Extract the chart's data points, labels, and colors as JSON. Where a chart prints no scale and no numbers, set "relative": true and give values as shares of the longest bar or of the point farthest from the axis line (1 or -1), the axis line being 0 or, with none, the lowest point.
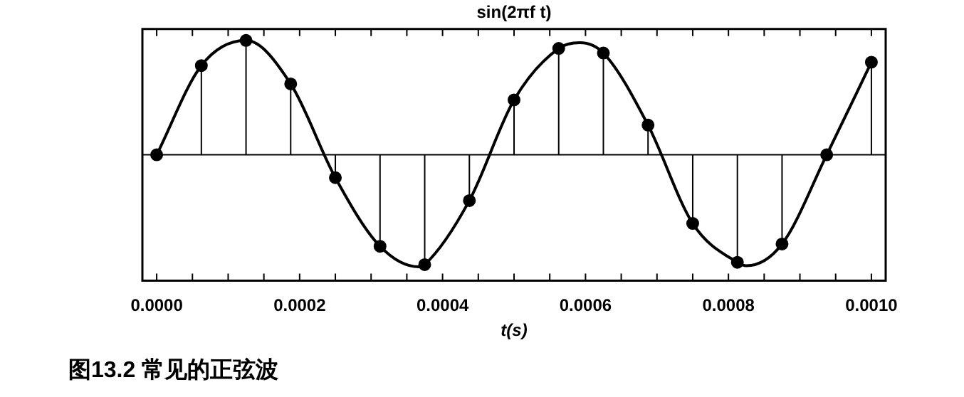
{
  "chart_data": {
    "type": "lollipop",
    "title": "sin(2πf t)",
    "xlabel": "t(s)",
    "annotations": [
      "图13.2 常见的正弦波"
    ],
    "relative": true,
    "tick_labels": "x",
    "xlim": [
      -2e-05,
      0.00102
    ],
    "xticks": [
      {
        "value": 0,
        "label": "0.0000"
      },
      {
        "value": 5e-05,
        "label": null
      },
      {
        "value": 0.0001,
        "label": null
      },
      {
        "value": 0.00015,
        "label": null
      },
      {
        "value": 0.0002,
        "label": "0.0002"
      },
      {
        "value": 0.00025,
        "label": null
      },
      {
        "value": 0.0003,
        "label": null
      },
      {
        "value": 0.00035,
        "label": null
      },
      {
        "value": 0.0004,
        "label": "0.0004"
      },
      {
        "value": 0.00045,
        "label": null
      },
      {
        "value": 0.0005,
        "label": null
      },
      {
        "value": 0.00055,
        "label": null
      },
      {
        "value": 0.0006,
        "label": "0.0006"
      },
      {
        "value": 0.00065,
        "label": null
      },
      {
        "value": 0.0007,
        "label": null
      },
      {
        "value": 0.00075,
        "label": null
      },
      {
        "value": 0.0008,
        "label": "0.0008"
      },
      {
        "value": 0.00085,
        "label": null
      },
      {
        "value": 0.0009,
        "label": null
      },
      {
        "value": 0.00095,
        "label": null
      },
      {
        "value": 0.001,
        "label": "0.0010"
      }
    ],
    "series": [
      {
        "marker": "circle",
        "color": "#000000",
        "x": [
          0,
          6.25e-05,
          0.000125,
          0.0001875,
          0.00025,
          0.0003125,
          0.000375,
          0.0004375,
          0.0005,
          0.0005625,
          0.000625,
          0.0006875,
          0.00075,
          0.0008125,
          0.000875,
          0.0009375,
          0.001
        ],
        "values": [
          0,
          0.78,
          1,
          0.62,
          -0.2,
          -0.8,
          -0.96,
          -0.4,
          0.48,
          0.93,
          0.89,
          0.26,
          -0.6,
          -0.94,
          -0.78,
          0,
          0.81
        ]
      },
      {
        "type": "line",
        "marker": "none",
        "color": "#000000",
        "x": [
          0,
          6.25e-05,
          0.000125,
          0.0001875,
          0.00025,
          0.0003125,
          0.000367,
          0.000375,
          0.0004375,
          0.0005,
          0.0005625,
          0.000592,
          0.000625,
          0.0006875,
          0.00075,
          0.0008125,
          0.000825,
          0.000875,
          0.0009375,
          0.001
        ],
        "values": [
          0,
          0.78,
          1,
          0.62,
          -0.2,
          -0.8,
          -0.98,
          -0.96,
          -0.4,
          0.48,
          0.93,
          0.98,
          0.89,
          0.26,
          -0.6,
          -0.94,
          -0.97,
          -0.78,
          0,
          0.81
        ]
      }
    ]
  }
}
